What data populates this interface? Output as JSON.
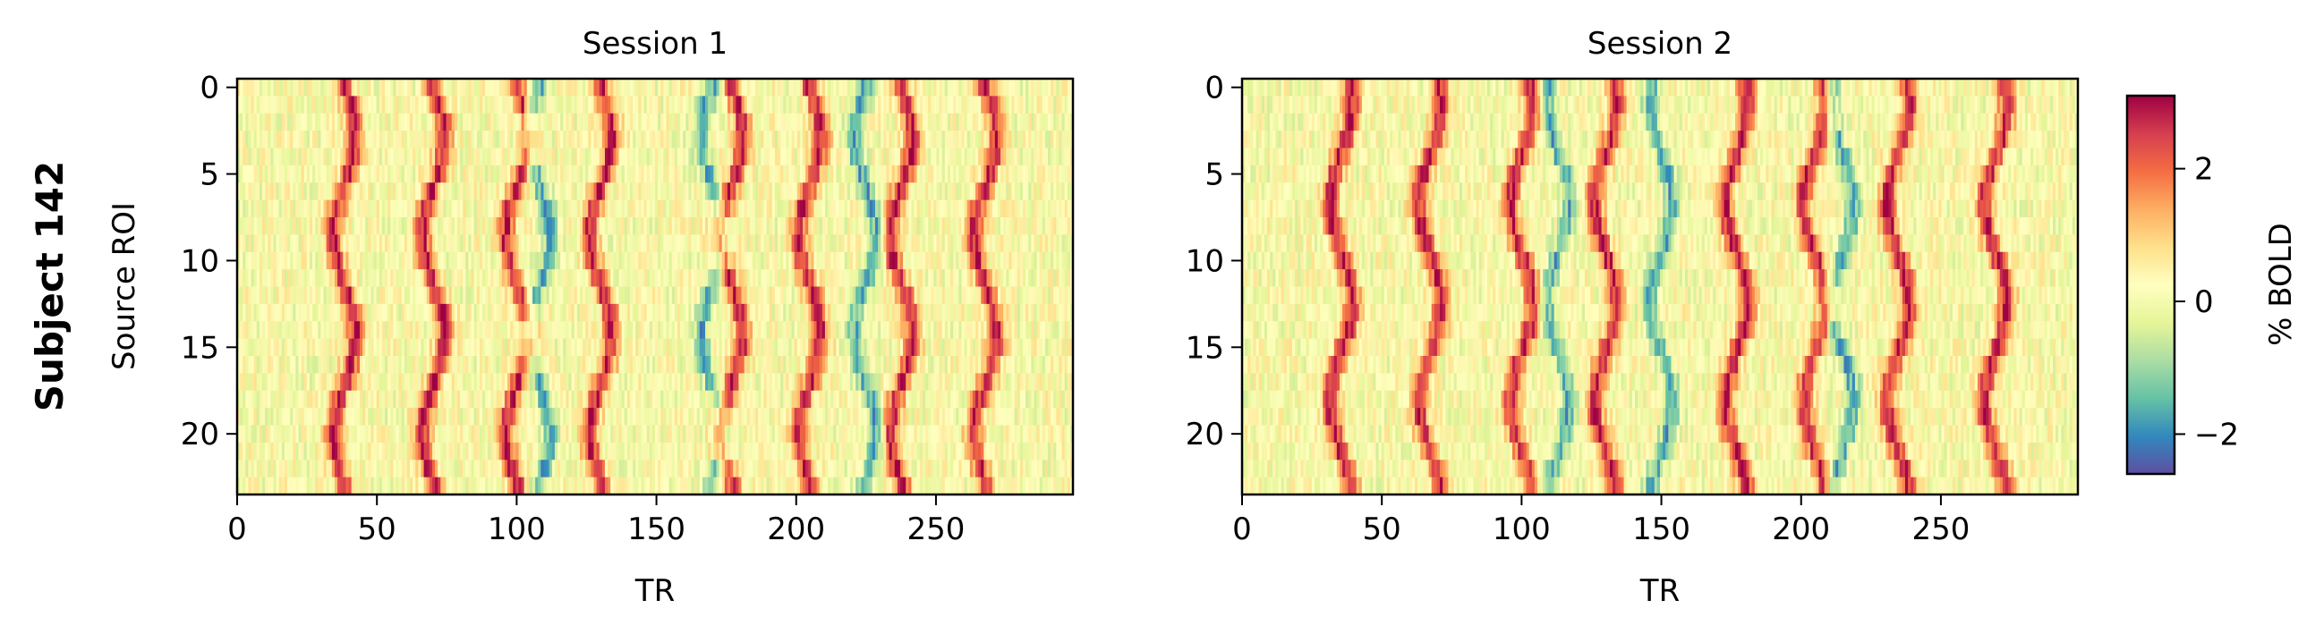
{
  "figure": {
    "row_label": "Subject 142"
  },
  "chart_data": [
    {
      "type": "heatmap",
      "title": "Session 1",
      "xlabel": "TR",
      "ylabel": "Source ROI",
      "n_rows": 24,
      "n_cols": 300,
      "xlim": [
        0,
        299
      ],
      "ylim": [
        23.5,
        -0.5
      ],
      "xticks": [
        0,
        50,
        100,
        150,
        200,
        250
      ],
      "yticks": [
        0,
        5,
        10,
        15,
        20
      ],
      "xtick_labels": [
        "0",
        "50",
        "100",
        "150",
        "200",
        "250"
      ],
      "ytick_labels": [
        "0",
        "5",
        "10",
        "15",
        "20"
      ],
      "high_activity_bands_TR": [
        38,
        70,
        100,
        130,
        177,
        205,
        238,
        268
      ],
      "low_activity_bands_TR": [
        108,
        170,
        225
      ],
      "grid": false
    },
    {
      "type": "heatmap",
      "title": "Session 2",
      "xlabel": "TR",
      "ylabel": "",
      "n_rows": 24,
      "n_cols": 300,
      "xlim": [
        0,
        299
      ],
      "ylim": [
        23.5,
        -0.5
      ],
      "xticks": [
        0,
        50,
        100,
        150,
        200,
        250
      ],
      "yticks": [
        0,
        5,
        10,
        15,
        20
      ],
      "xtick_labels": [
        "0",
        "50",
        "100",
        "150",
        "200",
        "250"
      ],
      "ytick_labels": [
        "0",
        "5",
        "10",
        "15",
        "20"
      ],
      "high_activity_bands_TR": [
        35,
        67,
        100,
        130,
        177,
        205,
        235,
        270
      ],
      "low_activity_bands_TR": [
        113,
        150,
        215
      ],
      "grid": false
    }
  ],
  "colorbar": {
    "label": "% BOLD",
    "colormap": "Spectral_r",
    "vmin": -2.6,
    "vmax": 3.1,
    "ticks": [
      -2,
      0,
      2
    ],
    "tick_labels": [
      "−2",
      "0",
      "2"
    ],
    "stops": [
      "#5e4fa2",
      "#3288bd",
      "#66c2a5",
      "#abdda4",
      "#e6f598",
      "#ffffbf",
      "#fee08b",
      "#fdae61",
      "#f46d43",
      "#d53e4f",
      "#9e0142"
    ]
  }
}
